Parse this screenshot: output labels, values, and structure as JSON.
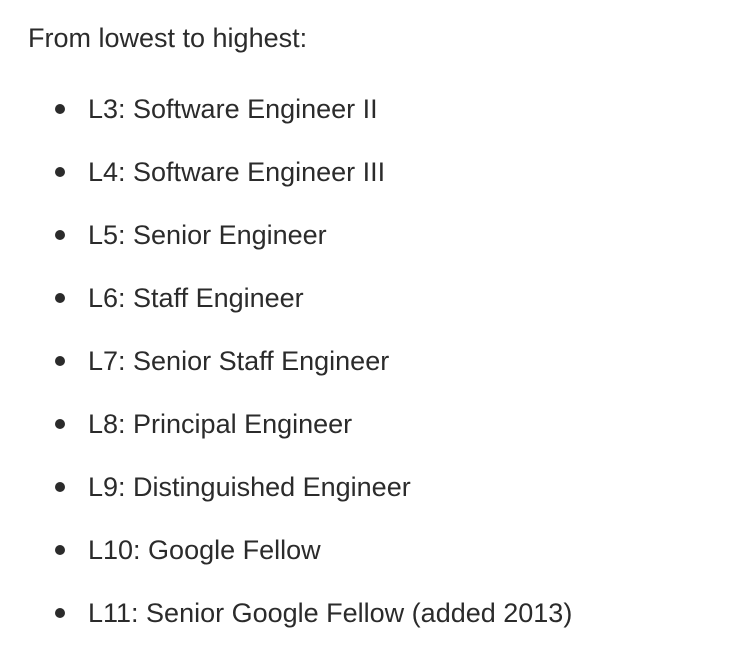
{
  "intro": "From lowest to highest:",
  "levels": [
    "L3: Software Engineer II",
    "L4: Software Engineer III",
    "L5: Senior Engineer",
    "L6: Staff Engineer",
    "L7: Senior Staff Engineer",
    "L8: Principal Engineer",
    "L9: Distinguished Engineer",
    "L10: Google Fellow",
    "L11: Senior Google Fellow (added 2013)"
  ]
}
